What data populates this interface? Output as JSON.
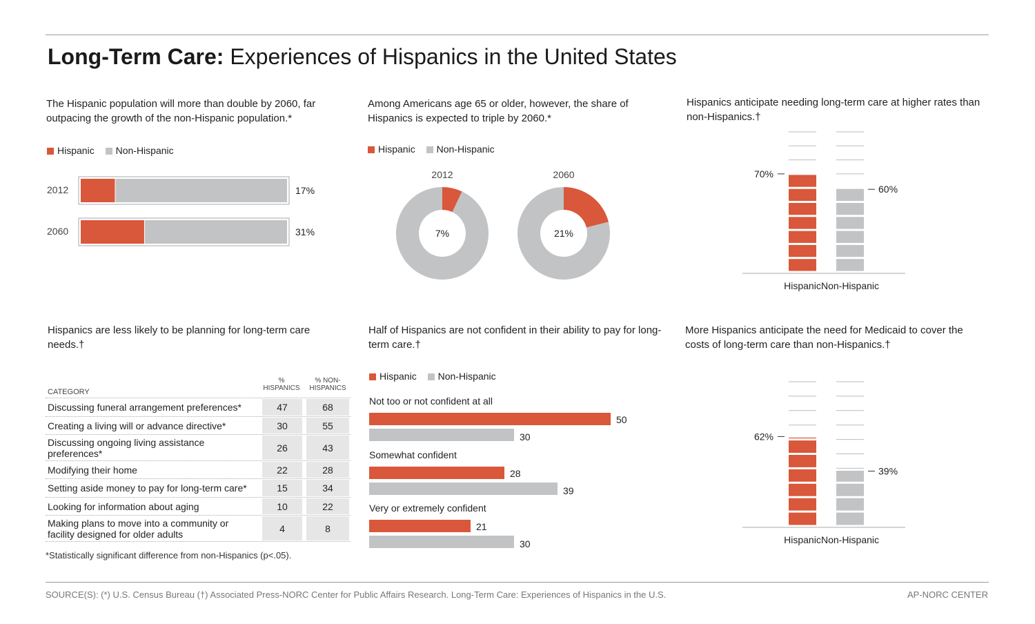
{
  "title": {
    "bold": "Long-Term Care:",
    "rest": " Experiences of Hispanics in the United States"
  },
  "colors": {
    "hispanic": "#d9573a",
    "non_hispanic": "#c2c3c5",
    "table_cell": "#e6e6e6"
  },
  "legend": {
    "hispanic": "Hispanic",
    "non_hispanic": "Non-Hispanic"
  },
  "panels": {
    "p1": {
      "subtitle": "The Hispanic population will more than double by 2060, far outpacing the growth of the non-Hispanic population.*"
    },
    "p2": {
      "subtitle": "Among Americans age 65 or older, however, the share of Hispanics is expected to triple by 2060.*"
    },
    "p3": {
      "subtitle": "Hispanics anticipate needing long-term care at higher rates than non-Hispanics.†"
    },
    "p4": {
      "subtitle": "Hispanics are less likely to be planning for long-term care needs.†"
    },
    "p5": {
      "subtitle": "Half of Hispanics are not confident in their ability to pay for long-term care.†"
    },
    "p6": {
      "subtitle": "More Hispanics anticipate the need for Medicaid to cover the costs of long-term care than non-Hispanics.†"
    }
  },
  "chart_data": [
    {
      "type": "bar",
      "orientation": "horizontal-stacked",
      "categories": [
        "2012",
        "2060"
      ],
      "series": [
        {
          "name": "Hispanic",
          "values": [
            17,
            31
          ]
        },
        {
          "name": "Non-Hispanic",
          "values": [
            83,
            69
          ]
        }
      ],
      "data_labels": [
        "17%",
        "31%"
      ],
      "xlim": [
        0,
        100
      ]
    },
    {
      "type": "pie",
      "donut": true,
      "charts": [
        {
          "label": "2012",
          "center_label": "7%",
          "slices": [
            {
              "name": "Hispanic",
              "value": 7
            },
            {
              "name": "Non-Hispanic",
              "value": 93
            }
          ]
        },
        {
          "label": "2060",
          "center_label": "21%",
          "slices": [
            {
              "name": "Hispanic",
              "value": 21
            },
            {
              "name": "Non-Hispanic",
              "value": 79
            }
          ]
        }
      ]
    },
    {
      "type": "bar",
      "categories": [
        "Hispanic",
        "Non-Hispanic"
      ],
      "values": [
        70,
        60
      ],
      "data_labels": [
        "70%",
        "60%"
      ],
      "ylim": [
        0,
        100
      ]
    },
    {
      "type": "table",
      "header_category": "CATEGORY",
      "columns": [
        "% HISPANICS",
        "% NON-HISPANICS"
      ],
      "rows": [
        {
          "category": "Discussing funeral arrangement preferences*",
          "hispanics": 47,
          "non_hispanics": 68
        },
        {
          "category": "Creating a living will or advance directive*",
          "hispanics": 30,
          "non_hispanics": 55
        },
        {
          "category": "Discussing ongoing living assistance preferences*",
          "hispanics": 26,
          "non_hispanics": 43
        },
        {
          "category": "Modifying their home",
          "hispanics": 22,
          "non_hispanics": 28
        },
        {
          "category": "Setting aside money to pay for long-term care*",
          "hispanics": 15,
          "non_hispanics": 34
        },
        {
          "category": "Looking for information about aging",
          "hispanics": 10,
          "non_hispanics": 22
        },
        {
          "category": "Making plans to move into a community or facility designed for older adults",
          "hispanics": 4,
          "non_hispanics": 8
        }
      ],
      "note": "*Statistically significant difference from non-Hispanics (p<.05)."
    },
    {
      "type": "bar",
      "orientation": "horizontal-grouped",
      "categories": [
        "Not too or not confident at all",
        "Somewhat confident",
        "Very or extremely confident"
      ],
      "series": [
        {
          "name": "Hispanic",
          "values": [
            50,
            28,
            21
          ]
        },
        {
          "name": "Non-Hispanic",
          "values": [
            30,
            39,
            30
          ]
        }
      ],
      "xlim": [
        0,
        60
      ]
    },
    {
      "type": "bar",
      "categories": [
        "Hispanic",
        "Non-Hispanic"
      ],
      "values": [
        62,
        39
      ],
      "data_labels": [
        "62%",
        "39%"
      ],
      "ylim": [
        0,
        100
      ]
    }
  ],
  "footer": {
    "source": "SOURCE(S): (*) U.S. Census Bureau   (†) Associated Press-NORC Center for Public Affairs Research. Long-Term Care: Experiences of Hispanics in the U.S.",
    "credit": "AP-NORC CENTER"
  }
}
